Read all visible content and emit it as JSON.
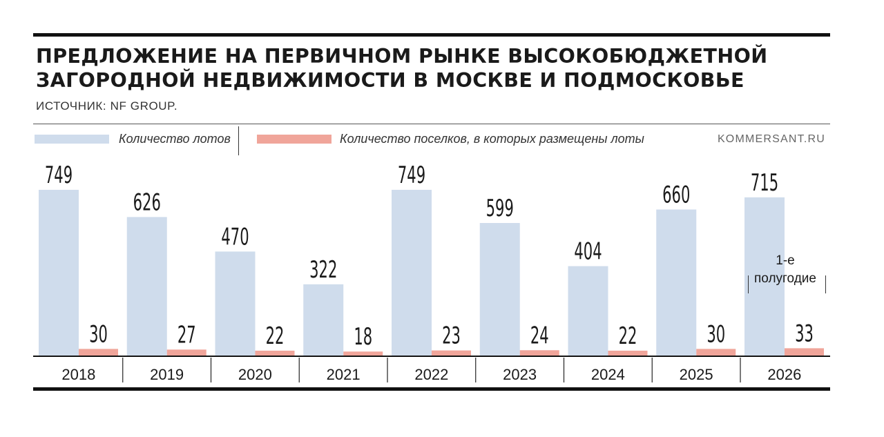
{
  "title_line1": "ПРЕДЛОЖЕНИЕ НА ПЕРВИЧНОМ РЫНКЕ ВЫСОКОБЮДЖЕТНОЙ",
  "title_line2": "ЗАГОРОДНОЙ НЕДВИЖИМОСТИ В МОСКВЕ И ПОДМОСКОВЬЕ",
  "source": "ИСТОЧНИК: NF GROUP.",
  "brand": "KOMMERSANT.RU",
  "note_line1": "1-е",
  "note_line2": "полугодие",
  "colors": {
    "lots": "#cfdcec",
    "settlements": "#f0a59a",
    "ink": "#1a1a1a"
  },
  "chart_data": {
    "type": "bar",
    "categories": [
      "2018",
      "2019",
      "2020",
      "2021",
      "2022",
      "2023",
      "2024",
      "2025",
      "2026"
    ],
    "series": [
      {
        "name": "Количество лотов",
        "values": [
          749,
          626,
          470,
          322,
          749,
          599,
          404,
          660,
          715
        ]
      },
      {
        "name": "Количество поселков, в которых размещены лоты",
        "values": [
          30,
          27,
          22,
          18,
          23,
          24,
          22,
          30,
          33
        ]
      }
    ],
    "ylim": [
      0,
      800
    ],
    "legend": "top-left",
    "grid": false
  }
}
